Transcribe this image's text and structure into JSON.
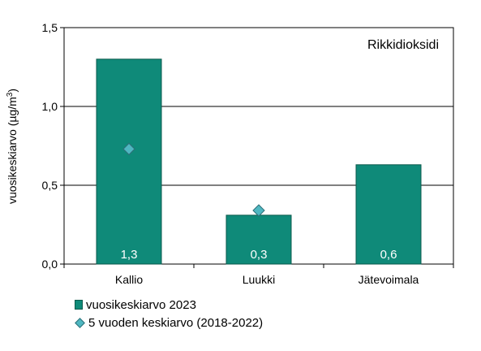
{
  "chart_data": {
    "type": "bar",
    "annotation": "Rikkidioksidi",
    "ylabel": "vuosikeskiarvo (µg/m³)",
    "ylabel_main": "vuosikeskiarvo (µg/m",
    "ylabel_sup": "3",
    "ylabel_close": ")",
    "xlabel": "",
    "ylim": [
      0,
      1.5
    ],
    "yticks": [
      "0,0",
      "0,5",
      "1,0",
      "1,5"
    ],
    "ytick_values": [
      0,
      0.5,
      1.0,
      1.5
    ],
    "grid": true,
    "categories": [
      "Kallio",
      "Luukki",
      "Jätevoimala"
    ],
    "series": [
      {
        "name": "vuosikeskiarvo 2023",
        "kind": "bar",
        "values": [
          1.3,
          0.31,
          0.63
        ],
        "data_labels": [
          "1,3",
          "0,3",
          "0,6"
        ],
        "color": "#0f8a79"
      },
      {
        "name": "5 vuoden keskiarvo (2018-2022)",
        "kind": "marker",
        "values": [
          0.73,
          0.34,
          null
        ],
        "color": "#4fb7c1"
      }
    ],
    "legend_position": "bottom-left"
  }
}
